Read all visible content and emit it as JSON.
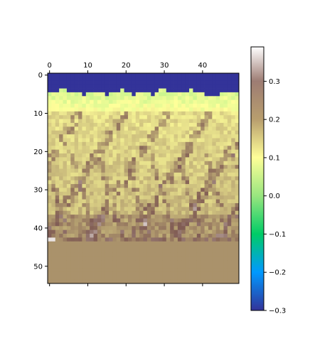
{
  "chart_data": {
    "type": "heatmap",
    "title": "",
    "xlabel": "",
    "ylabel": "",
    "rows": 55,
    "cols": 50,
    "xlim": [
      -0.5,
      49.5
    ],
    "ylim": [
      54.5,
      -0.5
    ],
    "x_ticks": [
      0,
      10,
      20,
      30,
      40
    ],
    "x_tick_labels": [
      "0",
      "10",
      "20",
      "30",
      "40"
    ],
    "x_tick_position": "top",
    "y_ticks": [
      0,
      10,
      20,
      30,
      40,
      50
    ],
    "y_tick_labels": [
      "0",
      "10",
      "20",
      "30",
      "40",
      "50"
    ],
    "colormap": "terrain",
    "vmin": -0.3,
    "vmax": 0.39,
    "colorbar": {
      "ticks": [
        -0.3,
        -0.2,
        -0.1,
        0.0,
        0.1,
        0.2,
        0.3
      ],
      "tick_labels": [
        "−0.3",
        "−0.2",
        "−0.1",
        "0.0",
        "0.1",
        "0.2",
        "0.3"
      ],
      "placement": "right"
    },
    "bands": [
      {
        "rows": [
          0,
          4
        ],
        "value": -0.3,
        "description": "deep blue band at top"
      },
      {
        "rows": [
          5,
          9
        ],
        "value": 0.02,
        "description": "light green band"
      },
      {
        "rows": [
          10,
          42
        ],
        "value": 0.1,
        "description": "textured yellow/tan region"
      },
      {
        "rows": [
          43,
          43
        ],
        "value": 0.2,
        "description": "bright streak row"
      },
      {
        "rows": [
          44,
          54
        ],
        "value": 0.16,
        "description": "uniform tan block"
      }
    ]
  }
}
